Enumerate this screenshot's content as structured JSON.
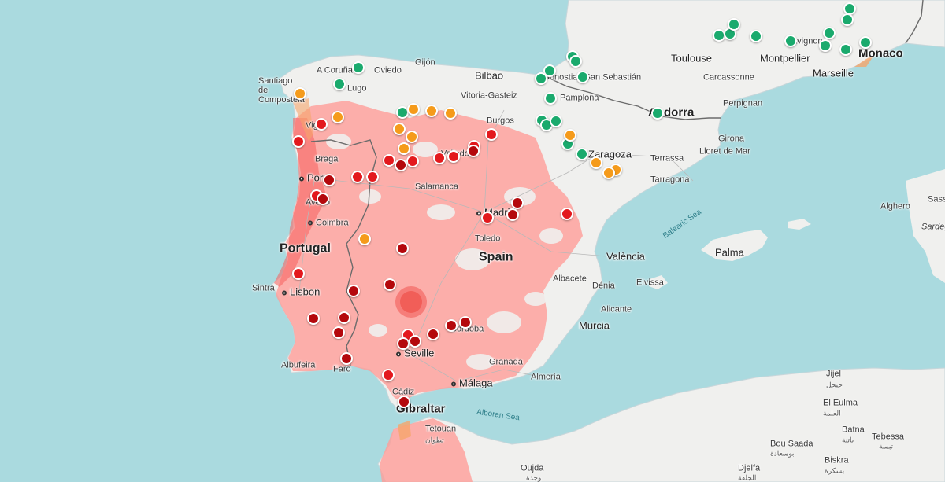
{
  "map": {
    "colors": {
      "sea": "#aadadf",
      "land": "#f0f0ee",
      "heat": "#ff9d98",
      "heat_strong": "#f5605c",
      "marker_green": "#1aaa6d",
      "marker_orange": "#f59b1b",
      "marker_red": "#e3191d",
      "marker_dark_red": "#b4080c"
    },
    "countries": {
      "portugal": "Portugal",
      "spain": "Spain",
      "andorra": "Andorra",
      "monaco": "Monaco",
      "gibraltar": "Gibraltar"
    },
    "cities": {
      "a_coruna": "A Coruña",
      "gijon": "Gijón",
      "oviedo": "Oviedo",
      "lugo": "Lugo",
      "santiago": "Santiago de Compostela",
      "vigo": "Vigo",
      "braga": "Braga",
      "porto": "Porto",
      "aveiro": "Aveiro",
      "coimbra": "Coimbra",
      "sintra": "Sintra",
      "lisbon": "Lisbon",
      "albufeira": "Albufeira",
      "faro": "Faro",
      "bilbao": "Bilbao",
      "vitoria": "Vitoria-Gasteiz",
      "donostia": "Donostia / San Sebastián",
      "pamplona": "Pamplona",
      "burgos": "Burgos",
      "valladolid": "Valladolid",
      "salamanca": "Salamanca",
      "zaragoza": "Zaragoza",
      "madrid": "Madrid",
      "toledo": "Toledo",
      "cordoba": "Córdoba",
      "seville": "Seville",
      "granada": "Granada",
      "malaga": "Málaga",
      "almeria": "Almería",
      "cadiz": "Cádiz",
      "murcia": "Murcia",
      "alicante": "Alicante",
      "albacete": "Albacete",
      "valencia": "València",
      "denia": "Dénia",
      "eivissa": "Eivissa",
      "palma": "Palma",
      "tarragona": "Tarragona",
      "terrassa": "Terrassa",
      "lloret": "Lloret de Mar",
      "girona": "Girona",
      "perpignan": "Perpignan",
      "carcassonne": "Carcassonne",
      "toulouse": "Toulouse",
      "montpellier": "Montpellier",
      "avignon": "Avignon",
      "marseille": "Marseille",
      "alghero": "Alghero",
      "sassari": "Sassari",
      "sardegna": "Sardegna",
      "tetouan": "Tetouan",
      "tetouan_ar": "تطوان",
      "oujda": "Oujda",
      "oujda_ar": "وجدة",
      "jijel": "Jijel",
      "jijel_ar": "جيجل",
      "el_eulma": "El Eulma",
      "el_eulma_ar": "العلمة",
      "batna": "Batna",
      "batna_ar": "باتنة",
      "bou_saada": "Bou Saada",
      "bou_saada_ar": "بوسعادة",
      "biskra": "Biskra",
      "biskra_ar": "بسكرة",
      "djelfa": "Djelfa",
      "djelfa_ar": "الجلفة",
      "tebessa": "Tebessa",
      "tebessa_ar": "تبسة"
    },
    "seas": {
      "balearic": "Balearic Sea",
      "alboran": "Alboran Sea"
    }
  }
}
